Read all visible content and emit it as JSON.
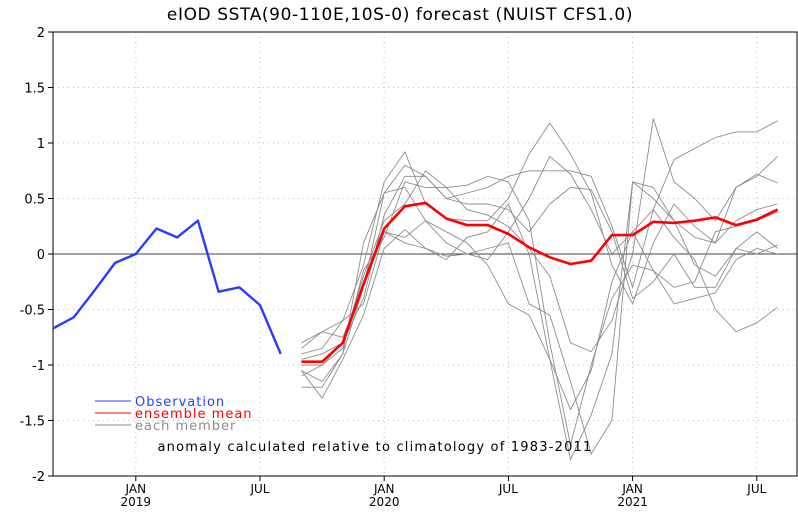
{
  "chart_data": {
    "type": "line",
    "title": "eIOD SSTA(90-110E,10S-0) forecast (NUIST CFS1.0)",
    "ylim": [
      -2,
      2
    ],
    "yticks": [
      "2",
      "1.5",
      "1",
      "0.5",
      "0",
      "-0.5",
      "-1",
      "-1.5",
      "-2"
    ],
    "ytick_values": [
      2,
      1.5,
      1,
      0.5,
      0,
      -0.5,
      -1,
      -1.5,
      -2
    ],
    "xlim": [
      "2018-09",
      "2021-10"
    ],
    "xticks": [
      {
        "month": "2019-01",
        "label": "JAN",
        "year": "2019"
      },
      {
        "month": "2019-07",
        "label": "JUL",
        "year": ""
      },
      {
        "month": "2020-01",
        "label": "JAN",
        "year": "2020"
      },
      {
        "month": "2020-07",
        "label": "JUL",
        "year": ""
      },
      {
        "month": "2021-01",
        "label": "JAN",
        "year": "2021"
      },
      {
        "month": "2021-07",
        "label": "JUL",
        "year": ""
      }
    ],
    "grid": true,
    "zero_line": true,
    "legend": [
      {
        "label": "Observation",
        "color": "#2a3cff"
      },
      {
        "label": "ensemble mean",
        "color": "#ff0000"
      },
      {
        "label": "each member",
        "color": "#8c8c8c"
      }
    ],
    "legend_placement": "bottom-left",
    "annotation": "anomaly calculated relative to climatology of 1983-2011",
    "observation": {
      "x": [
        "2018-09",
        "2018-10",
        "2018-11",
        "2018-12",
        "2019-01",
        "2019-02",
        "2019-03",
        "2019-04",
        "2019-05",
        "2019-06",
        "2019-07",
        "2019-08"
      ],
      "values": [
        -0.67,
        -0.57,
        -0.33,
        -0.08,
        0.0,
        0.23,
        0.15,
        0.3,
        -0.34,
        -0.3,
        -0.46,
        -0.9
      ]
    },
    "forecast_x": [
      "2019-09",
      "2019-10",
      "2019-11",
      "2019-12",
      "2020-01",
      "2020-02",
      "2020-03",
      "2020-04",
      "2020-05",
      "2020-06",
      "2020-07",
      "2020-08",
      "2020-09",
      "2020-10",
      "2020-11",
      "2020-12",
      "2021-01",
      "2021-02",
      "2021-03",
      "2021-04",
      "2021-05",
      "2021-06",
      "2021-07",
      "2021-08"
    ],
    "ensemble_mean": [
      -0.97,
      -0.97,
      -0.8,
      -0.27,
      0.23,
      0.43,
      0.46,
      0.32,
      0.26,
      0.26,
      0.18,
      0.06,
      -0.03,
      -0.09,
      -0.06,
      0.17,
      0.17,
      0.29,
      0.28,
      0.3,
      0.33,
      0.26,
      0.31,
      0.4
    ],
    "members": [
      [
        -0.85,
        -0.7,
        -0.6,
        -0.1,
        0.65,
        0.92,
        0.45,
        0.32,
        0.3,
        0.3,
        0.5,
        0.9,
        1.18,
        0.9,
        0.55,
        -0.1,
        -0.45,
        0.1,
        0.45,
        0.25,
        0.1,
        0.3,
        0.4,
        0.45
      ],
      [
        -1.05,
        -1.15,
        -0.9,
        -0.3,
        0.55,
        0.8,
        0.7,
        0.5,
        0.55,
        0.6,
        0.7,
        0.75,
        0.75,
        0.75,
        0.7,
        0.25,
        -0.3,
        0.4,
        0.85,
        0.95,
        1.05,
        1.1,
        1.1,
        1.2
      ],
      [
        -0.95,
        -0.9,
        -0.8,
        -0.2,
        0.3,
        0.45,
        0.75,
        0.6,
        0.4,
        0.35,
        0.25,
        0.05,
        -0.2,
        -0.8,
        -0.88,
        -0.6,
        0.0,
        1.22,
        0.65,
        0.5,
        0.3,
        0.6,
        0.7,
        0.88
      ],
      [
        -0.8,
        -0.7,
        -0.75,
        -0.3,
        0.2,
        0.1,
        0.05,
        -0.02,
        0.0,
        0.05,
        0.1,
        -0.45,
        -0.55,
        -1.15,
        -1.8,
        -1.5,
        0.65,
        0.6,
        0.3,
        -0.1,
        -0.2,
        0.05,
        0.0,
        0.08
      ],
      [
        -1.0,
        -1.0,
        -0.8,
        -0.4,
        0.35,
        0.7,
        0.7,
        0.5,
        0.45,
        0.45,
        0.4,
        0.2,
        0.45,
        0.6,
        0.58,
        0.2,
        -0.4,
        -0.25,
        0.0,
        -0.3,
        -0.3,
        0.05,
        0.2,
        0.05
      ],
      [
        -1.2,
        -1.2,
        -0.9,
        0.1,
        0.55,
        0.6,
        0.3,
        0.2,
        0.1,
        -0.1,
        -0.45,
        -0.55,
        -0.95,
        -1.4,
        -1.05,
        -0.25,
        0.2,
        0.4,
        0.15,
        -0.05,
        -0.5,
        -0.7,
        -0.62,
        -0.48
      ],
      [
        -0.9,
        -0.85,
        -0.6,
        -0.45,
        0.2,
        0.15,
        0.3,
        0.1,
        0.0,
        -0.05,
        0.2,
        0.5,
        0.88,
        0.72,
        0.4,
        0.0,
        0.2,
        -0.15,
        -0.3,
        -0.25,
        0.2,
        0.25,
        0.3,
        0.38
      ],
      [
        -1.05,
        -1.3,
        -0.95,
        -0.55,
        0.05,
        0.22,
        0.05,
        -0.05,
        0.15,
        0.2,
        0.45,
        0.0,
        -0.95,
        -1.85,
        -1.45,
        -0.9,
        0.65,
        0.5,
        0.3,
        0.15,
        0.1,
        0.6,
        0.72,
        0.64
      ],
      [
        -1.1,
        -1.0,
        -0.85,
        -0.15,
        0.15,
        0.65,
        0.6,
        0.6,
        0.62,
        0.7,
        0.65,
        0.3,
        -0.8,
        -1.72,
        -1.0,
        -0.4,
        -0.1,
        -0.15,
        -0.45,
        -0.4,
        -0.35,
        -0.05,
        0.05,
        0.0
      ]
    ]
  }
}
